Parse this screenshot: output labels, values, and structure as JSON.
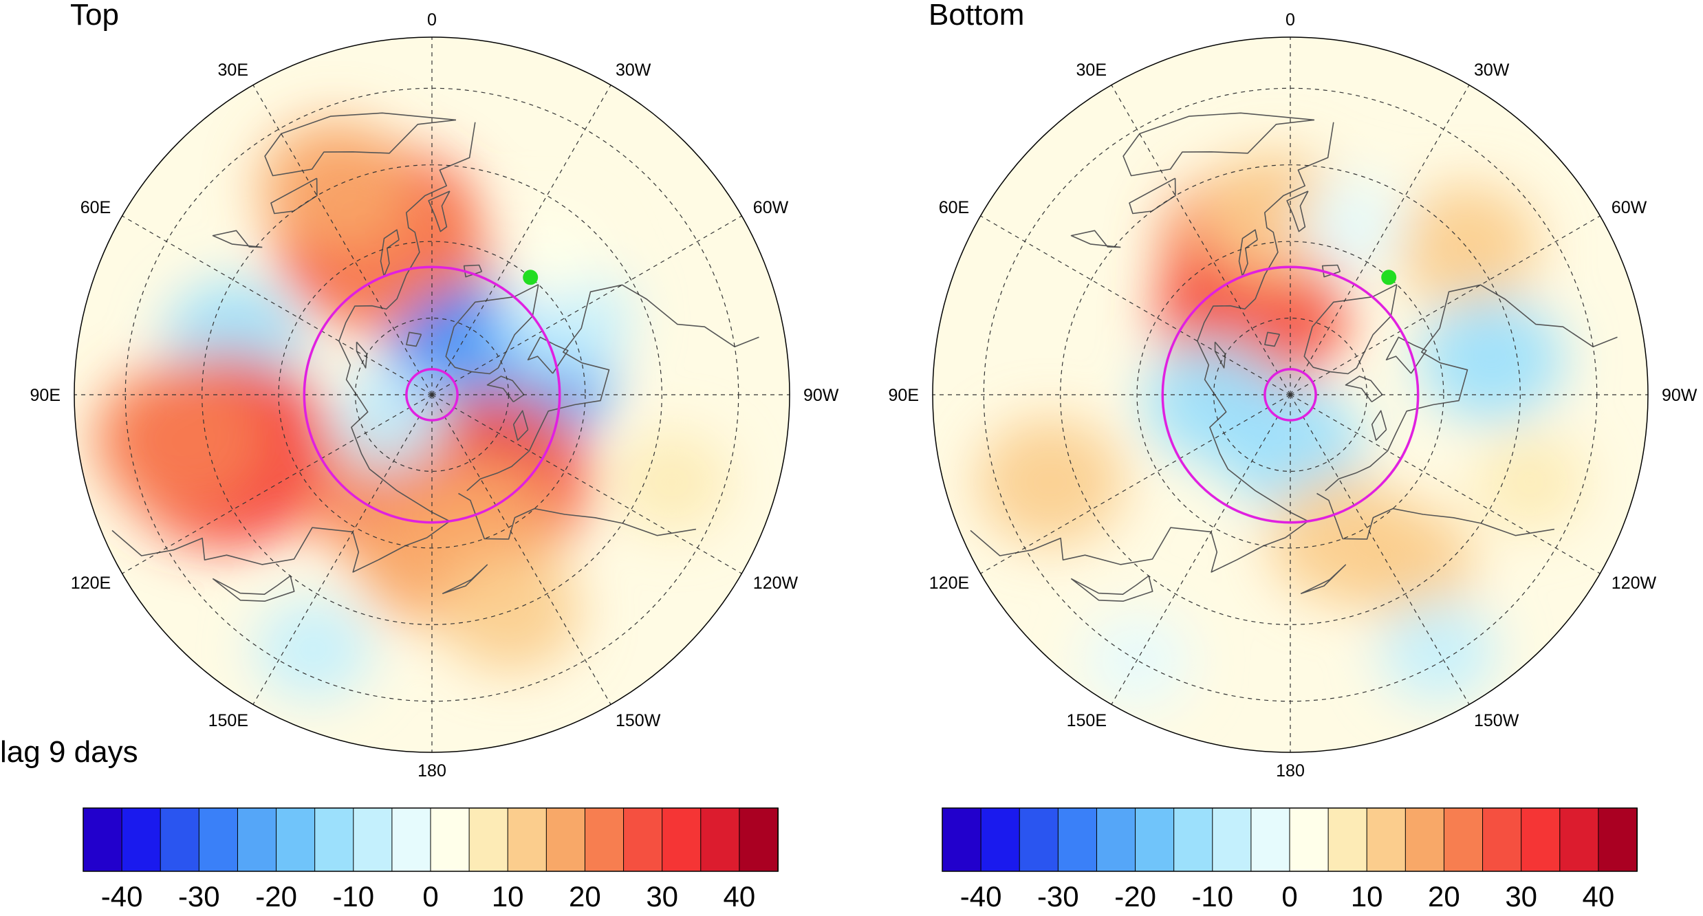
{
  "figure": {
    "note": "lag 9 days",
    "panels": [
      {
        "id": "top",
        "title": "Top",
        "marker_color": "#22dd22",
        "ring_color": "#e020e0",
        "anomalies": [
          {
            "lat": 58,
            "lon": 18,
            "value": 30
          },
          {
            "lat": 63,
            "lon": 10,
            "value": 22
          },
          {
            "lat": 45,
            "lon": 25,
            "value": 15
          },
          {
            "lat": 50,
            "lon": 75,
            "value": -12
          },
          {
            "lat": 78,
            "lon": -65,
            "value": -28
          },
          {
            "lat": 72,
            "lon": -80,
            "value": -22
          },
          {
            "lat": 60,
            "lon": -60,
            "value": -10
          },
          {
            "lat": 48,
            "lon": 105,
            "value": 33
          },
          {
            "lat": 40,
            "lon": 100,
            "value": 20
          },
          {
            "lat": 70,
            "lon": 160,
            "value": 22
          },
          {
            "lat": 70,
            "lon": -145,
            "value": 28
          },
          {
            "lat": 62,
            "lon": -160,
            "value": 15
          },
          {
            "lat": 58,
            "lon": 180,
            "value": 15
          },
          {
            "lat": 45,
            "lon": -160,
            "value": 12
          },
          {
            "lat": 35,
            "lon": 155,
            "value": -6
          },
          {
            "lat": 40,
            "lon": -110,
            "value": 6
          },
          {
            "lat": 55,
            "lon": -40,
            "value": 4
          },
          {
            "lat": 80,
            "lon": 120,
            "value": -6
          }
        ]
      },
      {
        "id": "bottom",
        "title": "Bottom",
        "marker_color": "#22dd22",
        "ring_color": "#e020e0",
        "anomalies": [
          {
            "lat": 60,
            "lon": 15,
            "value": 22
          },
          {
            "lat": 72,
            "lon": 25,
            "value": 25
          },
          {
            "lat": 55,
            "lon": 5,
            "value": 14
          },
          {
            "lat": 45,
            "lon": -50,
            "value": 13
          },
          {
            "lat": 50,
            "lon": -80,
            "value": -13
          },
          {
            "lat": 55,
            "lon": -20,
            "value": -4
          },
          {
            "lat": 75,
            "lon": 95,
            "value": -12
          },
          {
            "lat": 80,
            "lon": 180,
            "value": -13
          },
          {
            "lat": 40,
            "lon": 110,
            "value": 14
          },
          {
            "lat": 60,
            "lon": -160,
            "value": 14
          },
          {
            "lat": 50,
            "lon": -145,
            "value": 10
          },
          {
            "lat": 30,
            "lon": 150,
            "value": -4
          },
          {
            "lat": 32,
            "lon": -150,
            "value": -6
          },
          {
            "lat": 40,
            "lon": -110,
            "value": 5
          }
        ]
      }
    ],
    "graticule": {
      "meridians": [
        {
          "lon": 0,
          "label": "0"
        },
        {
          "lon": -30,
          "label": "30W"
        },
        {
          "lon": -60,
          "label": "60W"
        },
        {
          "lon": -90,
          "label": "90W"
        },
        {
          "lon": -120,
          "label": "120W"
        },
        {
          "lon": -150,
          "label": "150W"
        },
        {
          "lon": 180,
          "label": "180"
        },
        {
          "lon": 150,
          "label": "150E"
        },
        {
          "lon": 120,
          "label": "120E"
        },
        {
          "lon": 90,
          "label": "90E"
        },
        {
          "lon": 60,
          "label": "60E"
        },
        {
          "lon": 30,
          "label": "30E"
        }
      ],
      "parallels": [
        30,
        45,
        60,
        75
      ],
      "outer_latitude": 20
    },
    "rings_latitude": [
      65,
      85
    ],
    "marker": {
      "lat": 60,
      "lon": -40
    },
    "colorbar": {
      "colors": [
        "#2200cc",
        "#1a1aee",
        "#2a55f0",
        "#3a80f8",
        "#55a6f8",
        "#70c4fa",
        "#9ce0fc",
        "#c4f0fd",
        "#e6fbfd",
        "#ffffea",
        "#fdebb6",
        "#fbcd8d",
        "#f8a868",
        "#f77e50",
        "#f55040",
        "#f53535",
        "#dc1c2e",
        "#aa0022"
      ],
      "tick_labels": [
        "-40",
        "-30",
        "-20",
        "-10",
        "0",
        "10",
        "20",
        "30",
        "40"
      ]
    }
  }
}
